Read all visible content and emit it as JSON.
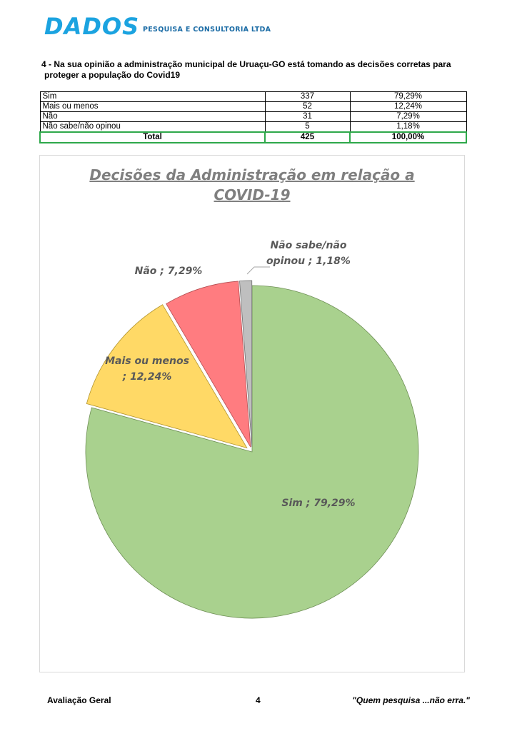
{
  "header": {
    "logo_text": "DADOS",
    "logo_subtitle": "PESQUISA E CONSULTORIA LTDA"
  },
  "question": {
    "line1": "4 - Na sua opinião a administração municipal de Uruaçu-GO está tomando as decisões corretas para",
    "line2": "proteger a população do Covid19"
  },
  "table": {
    "rows": [
      {
        "label": "Sim",
        "count": "337",
        "pct": "79,29%"
      },
      {
        "label": "Mais ou menos",
        "count": "52",
        "pct": "12,24%"
      },
      {
        "label": "Não",
        "count": "31",
        "pct": "7,29%"
      },
      {
        "label": "Não sabe/não opinou",
        "count": "5",
        "pct": "1,18%"
      }
    ],
    "total": {
      "label": "Total",
      "count": "425",
      "pct": "100,00%"
    }
  },
  "chart_data": {
    "type": "pie",
    "title_line1": "Decisões da Administração em relação a",
    "title_line2": "COVID-19",
    "slices": [
      {
        "name": "Sim",
        "value": 79.29,
        "label_line1": "Sim ; 79,29%",
        "label_line2": "",
        "color": "#a9d18e"
      },
      {
        "name": "Mais ou menos",
        "value": 12.24,
        "label_line1": "Mais ou menos",
        "label_line2": "; 12,24%",
        "color": "#ffd966"
      },
      {
        "name": "Não",
        "value": 7.29,
        "label_line1": "Não  ; 7,29%",
        "label_line2": "",
        "color": "#ff7c80"
      },
      {
        "name": "Não sabe/não opinou",
        "value": 1.18,
        "label_line1": "Não sabe/não",
        "label_line2": "opinou ; 1,18%",
        "color": "#bfbfbf"
      }
    ],
    "exploded": true,
    "start_angle": "12 o'clock",
    "direction": "clockwise",
    "legend": "none"
  },
  "footer": {
    "left": "Avaliação Geral",
    "page": "4",
    "right": "\"Quem pesquisa ...não erra.\""
  }
}
